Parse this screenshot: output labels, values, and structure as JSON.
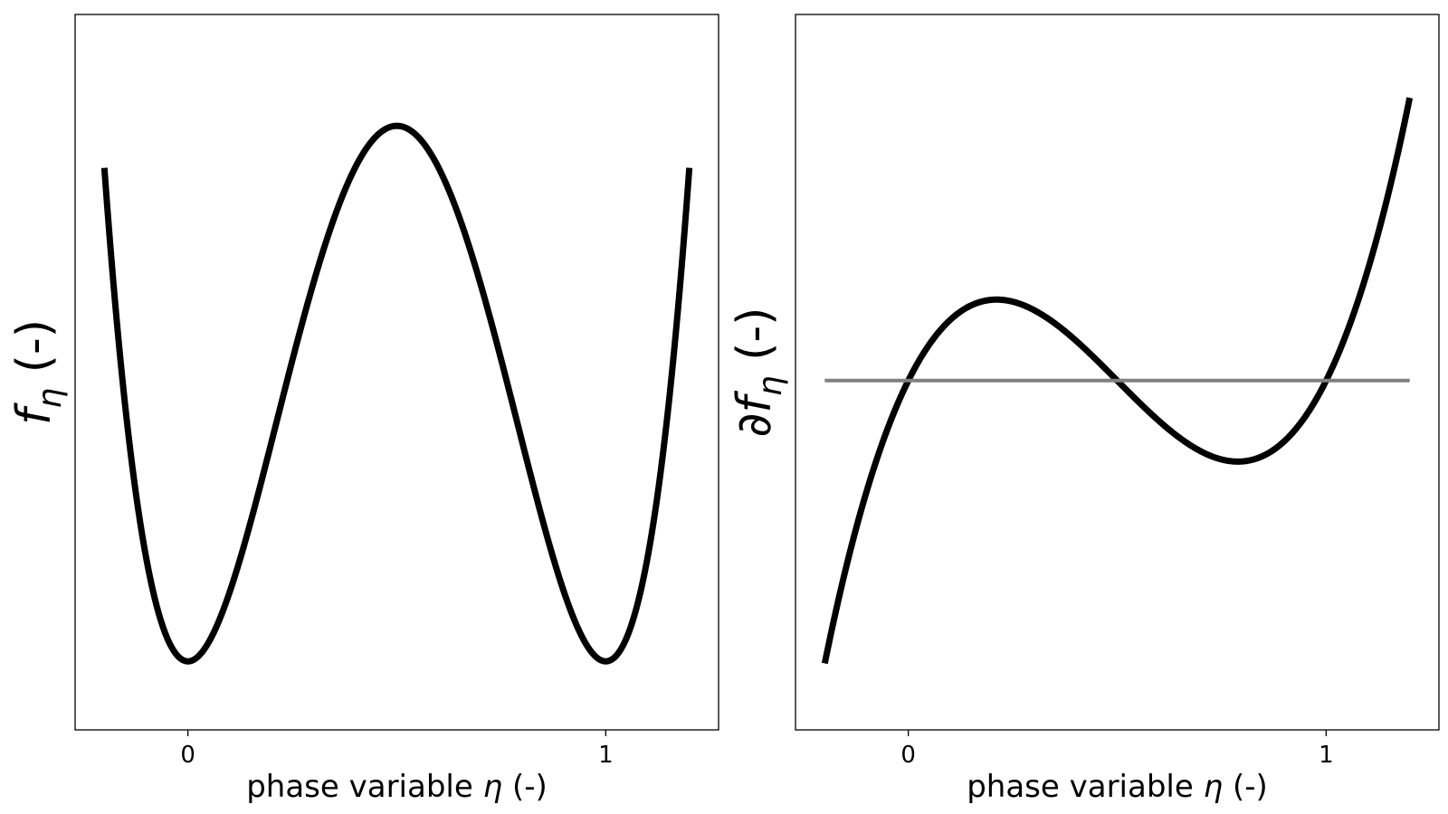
{
  "chart_data": [
    {
      "type": "line",
      "title": "",
      "xlabel": "phase variable η (-)",
      "ylabel": "f_η (-)",
      "xlabel_parts": {
        "prefix": "phase variable ",
        "symbol": "η",
        "suffix": " (-)"
      },
      "ylabel_parts": {
        "symbol": "f",
        "subscript": "η",
        "suffix": " (-)"
      },
      "function": "η²(1−η)²",
      "xlim": [
        -0.27,
        1.27
      ],
      "ylim": [
        -0.008,
        0.0755
      ],
      "xticks": [
        0,
        1
      ],
      "xtick_labels": [
        "0",
        "1"
      ],
      "yticks_shown": false,
      "grid": false,
      "series": [
        {
          "color": "#000000",
          "x": [
            -0.2,
            -0.15,
            -0.1,
            -0.05,
            0,
            0.05,
            0.1,
            0.15,
            0.2,
            0.25,
            0.3,
            0.35,
            0.4,
            0.45,
            0.5,
            0.55,
            0.6,
            0.65,
            0.7,
            0.75,
            0.8,
            0.85,
            0.9,
            0.95,
            1,
            1.05,
            1.1,
            1.15,
            1.2
          ],
          "y": [
            0.0576,
            0.02976,
            0.0121,
            0.00276,
            0,
            0.00226,
            0.0081,
            0.01626,
            0.0256,
            0.03516,
            0.0441,
            0.05176,
            0.0576,
            0.06126,
            0.0625,
            0.06126,
            0.0576,
            0.05176,
            0.0441,
            0.03516,
            0.0256,
            0.01626,
            0.0081,
            0.00226,
            0,
            0.00276,
            0.0121,
            0.02976,
            0.0576
          ]
        }
      ]
    },
    {
      "type": "line",
      "title": "",
      "xlabel": "phase variable η (-)",
      "ylabel": "∂f_η (-)",
      "xlabel_parts": {
        "prefix": "phase variable ",
        "symbol": "η",
        "suffix": " (-)"
      },
      "ylabel_parts": {
        "symbol": "∂f",
        "subscript": "η",
        "suffix": " (-)"
      },
      "function": "2η(1−η)(1−2η)",
      "xlim": [
        -0.27,
        1.27
      ],
      "ylim": [
        -0.83,
        0.87
      ],
      "xticks": [
        0,
        1
      ],
      "xtick_labels": [
        "0",
        "1"
      ],
      "yticks_shown": false,
      "grid": false,
      "series": [
        {
          "color": "#000000",
          "x": [
            -0.2,
            -0.15,
            -0.1,
            -0.05,
            0,
            0.05,
            0.1,
            0.15,
            0.2,
            0.25,
            0.3,
            0.35,
            0.4,
            0.45,
            0.5,
            0.55,
            0.6,
            0.65,
            0.7,
            0.75,
            0.8,
            0.85,
            0.9,
            0.95,
            1,
            1.05,
            1.1,
            1.15,
            1.2
          ],
          "y": [
            -0.672,
            -0.4485,
            -0.264,
            -0.1155,
            0,
            0.0855,
            0.144,
            0.1785,
            0.192,
            0.1875,
            0.168,
            0.1365,
            0.096,
            0.0495,
            0,
            -0.0495,
            -0.096,
            -0.1365,
            -0.168,
            -0.1875,
            -0.192,
            -0.1785,
            -0.144,
            -0.0855,
            0,
            0.1155,
            0.264,
            0.4485,
            0.672
          ]
        },
        {
          "color": "#808080",
          "x": [
            -0.2,
            1.2
          ],
          "y": [
            0,
            0
          ]
        }
      ]
    }
  ]
}
